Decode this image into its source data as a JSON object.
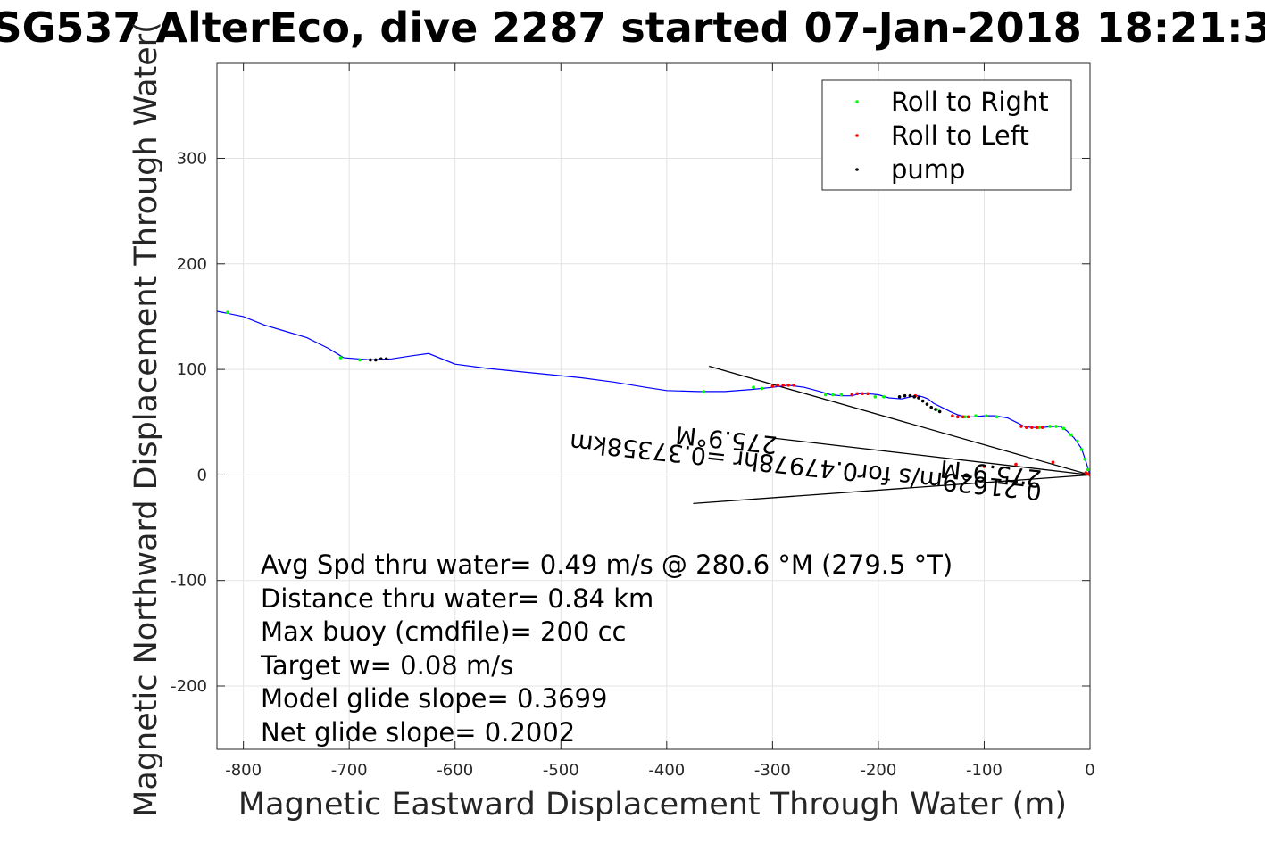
{
  "chart_data": {
    "type": "line",
    "title": "SG537 AlterEco, dive 2287 started 07-Jan-2018 18:21:3",
    "xlabel": "Magnetic Eastward Displacement Through Water (m)",
    "ylabel": "Magnetic Northward Displacement Through Water(",
    "xlim": [
      -825,
      0
    ],
    "ylim": [
      -260,
      390
    ],
    "xticks": [
      -800,
      -700,
      -600,
      -500,
      -400,
      -300,
      -200,
      -100,
      0
    ],
    "yticks": [
      -200,
      -100,
      0,
      100,
      200,
      300
    ],
    "grid": true,
    "legend_placement": "top-right",
    "track_color": "#0000ff",
    "track": {
      "x": [
        0,
        -3,
        -8,
        -15,
        -22,
        -28,
        -35,
        -45,
        -55,
        -62,
        -70,
        -78,
        -90,
        -100,
        -110,
        -118,
        -125,
        -132,
        -140,
        -148,
        -153,
        -158,
        -162,
        -165,
        -170,
        -178,
        -190,
        -200,
        -210,
        -218,
        -225,
        -235,
        -245,
        -255,
        -270,
        -285,
        -300,
        -320,
        -345,
        -370,
        -400,
        -420,
        -450,
        -480,
        -510,
        -540,
        -570,
        -600,
        -625,
        -640,
        -660,
        -680,
        -705,
        -720,
        -740,
        -760,
        -780,
        -800,
        -825
      ],
      "y": [
        0,
        10,
        25,
        35,
        42,
        46,
        46,
        45,
        45,
        46,
        50,
        54,
        56,
        56,
        55,
        55,
        57,
        60,
        64,
        68,
        72,
        74,
        75,
        75,
        74,
        72,
        73,
        76,
        77,
        77,
        75,
        75,
        76,
        79,
        83,
        85,
        83,
        81,
        79,
        79,
        80,
        83,
        88,
        92,
        95,
        98,
        101,
        105,
        115,
        113,
        110,
        109,
        111,
        120,
        130,
        136,
        142,
        150,
        155
      ]
    },
    "series": [
      {
        "name": "Roll to Right",
        "color": "#00ff00",
        "x": [
          -2,
          -5,
          -8,
          -12,
          -18,
          -25,
          -32,
          -38,
          -48,
          -88,
          -98,
          -108,
          -118,
          -145,
          -195,
          -203,
          -210,
          -235,
          -243,
          -250,
          -310,
          -318,
          -365,
          -690,
          -708,
          -815
        ],
        "y": [
          5,
          15,
          24,
          32,
          38,
          44,
          46,
          46,
          45,
          55,
          56,
          56,
          55,
          62,
          74,
          74,
          77,
          76,
          76,
          76,
          82,
          83,
          79,
          109,
          111,
          154
        ]
      },
      {
        "name": "Roll to Left",
        "color": "#ff0000",
        "x": [
          0,
          -2,
          -4,
          -45,
          -50,
          -55,
          -60,
          -65,
          -115,
          -120,
          -125,
          -130,
          -165,
          -170,
          -210,
          -215,
          -220,
          -225,
          -280,
          -285,
          -290,
          -295,
          -300,
          -35,
          -70,
          -100
        ],
        "y": [
          0,
          1,
          2,
          45,
          45,
          45,
          45,
          46,
          55,
          55,
          55,
          56,
          75,
          75,
          77,
          77,
          77,
          76,
          85,
          85,
          85,
          85,
          84,
          12,
          10,
          8
        ]
      },
      {
        "name": "pump",
        "color": "#000000",
        "x": [
          -142,
          -146,
          -150,
          -154,
          -158,
          -162,
          -166,
          -170,
          -175,
          -180,
          -665,
          -670,
          -675,
          -680
        ],
        "y": [
          60,
          62,
          64,
          67,
          70,
          73,
          74,
          75,
          75,
          74,
          110,
          110,
          109,
          109
        ]
      }
    ],
    "reference_lines": {
      "color": "#000000",
      "segments": [
        {
          "x": [
            0,
            -360
          ],
          "y": [
            0,
            103
          ]
        },
        {
          "x": [
            0,
            -375
          ],
          "y": [
            0,
            -27
          ]
        },
        {
          "x": [
            0,
            -300
          ],
          "y": [
            0,
            35
          ]
        }
      ]
    },
    "heading_labels": [
      {
        "text": "0.21629m/s for0.47978hr =0.37358km",
        "x": -45,
        "y": -8,
        "rotation": 186
      },
      {
        "text": "275.9°M",
        "x": -45,
        "y": 4,
        "rotation": 186
      },
      {
        "text": "275.9°M",
        "x": -295,
        "y": 36,
        "rotation": 186
      }
    ],
    "annotations": [
      "Avg Spd thru water=  0.49 m/s @ 280.6 °M (279.5 °T)",
      "Distance thru water=  0.84 km",
      "Max buoy (cmdfile)= 200 cc",
      "Target w= 0.08 m/s",
      "Model glide slope= 0.3699",
      "Net glide slope= 0.2002"
    ]
  }
}
